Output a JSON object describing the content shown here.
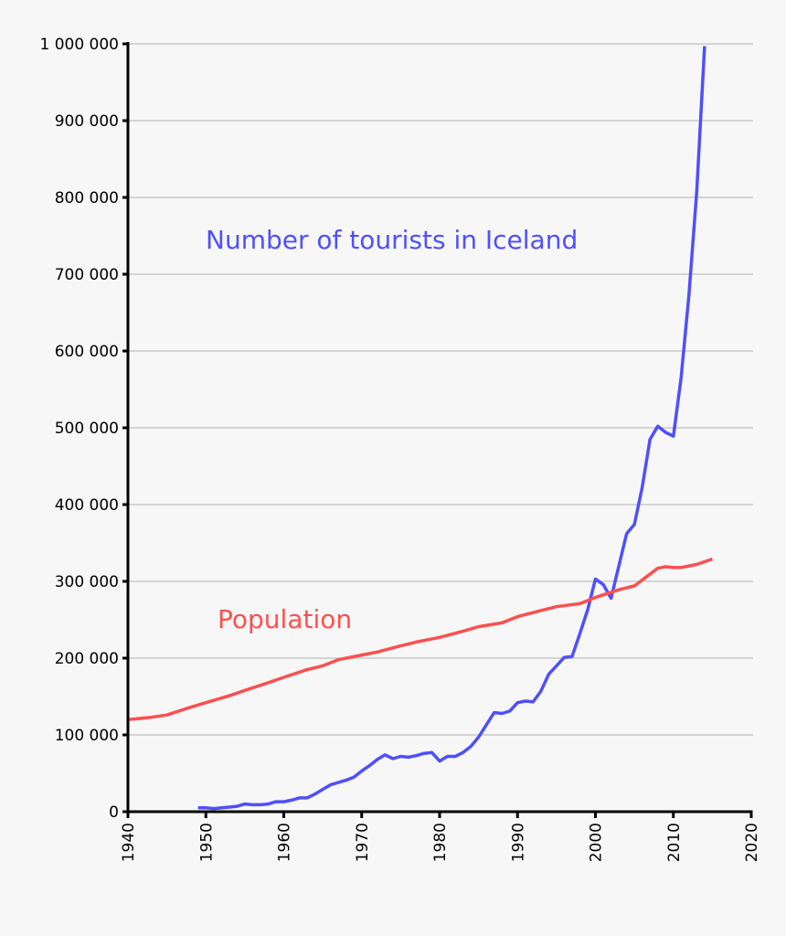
{
  "chart_data": {
    "type": "line",
    "title": "",
    "xlabel": "",
    "ylabel": "",
    "xlim": [
      1940,
      2020
    ],
    "ylim": [
      0,
      1000000
    ],
    "grid": "horizontal",
    "x_ticks": [
      "1940",
      "1950",
      "1960",
      "1970",
      "1980",
      "1990",
      "2000",
      "2010",
      "2020"
    ],
    "y_ticks": [
      "0",
      "100 000",
      "200 000",
      "300 000",
      "400 000",
      "500 000",
      "600 000",
      "700 000",
      "800 000",
      "900 000",
      "1 000 000"
    ],
    "series": [
      {
        "name": "Number of tourists in Iceland",
        "color": "#4f4fff",
        "x": [
          1949,
          1950,
          1951,
          1952,
          1953,
          1954,
          1955,
          1956,
          1957,
          1958,
          1959,
          1960,
          1961,
          1962,
          1963,
          1964,
          1965,
          1966,
          1967,
          1968,
          1969,
          1970,
          1971,
          1972,
          1973,
          1974,
          1975,
          1976,
          1977,
          1978,
          1979,
          1980,
          1981,
          1982,
          1983,
          1984,
          1985,
          1986,
          1987,
          1988,
          1989,
          1990,
          1991,
          1992,
          1993,
          1994,
          1995,
          1996,
          1997,
          1998,
          1999,
          2000,
          2001,
          2002,
          2003,
          2004,
          2005,
          2006,
          2007,
          2008,
          2009,
          2010,
          2011,
          2012,
          2013,
          2014
        ],
        "y": [
          5000,
          5000,
          4000,
          5000,
          6000,
          7000,
          10000,
          9000,
          9000,
          10000,
          13000,
          13000,
          15000,
          18000,
          18000,
          23000,
          29000,
          35000,
          38000,
          41000,
          45000,
          53000,
          60000,
          68000,
          74000,
          69000,
          72000,
          71000,
          73000,
          76000,
          77000,
          66000,
          72000,
          72000,
          77000,
          85000,
          97000,
          113000,
          129000,
          128000,
          131000,
          142000,
          144000,
          143000,
          157000,
          179000,
          190000,
          201000,
          202000,
          232000,
          263000,
          303000,
          296000,
          278000,
          320000,
          362000,
          374000,
          422000,
          485000,
          502000,
          494000,
          489000,
          566000,
          673000,
          807000,
          997000
        ]
      },
      {
        "name": "Population",
        "color": "#ff4f4f",
        "x": [
          1940,
          1943,
          1945,
          1948,
          1950,
          1953,
          1955,
          1958,
          1960,
          1963,
          1965,
          1967,
          1970,
          1972,
          1975,
          1977,
          1980,
          1983,
          1985,
          1988,
          1990,
          1993,
          1995,
          1998,
          2000,
          2003,
          2005,
          2008,
          2009,
          2010,
          2011,
          2013,
          2015
        ],
        "y": [
          120000,
          123000,
          126000,
          136000,
          142000,
          151000,
          158000,
          168000,
          175000,
          185000,
          190000,
          198000,
          204000,
          208000,
          216000,
          221000,
          227000,
          235000,
          241000,
          246000,
          254000,
          262000,
          267000,
          271000,
          279000,
          289000,
          294000,
          317000,
          319000,
          318000,
          318000,
          322000,
          329000
        ]
      }
    ]
  }
}
